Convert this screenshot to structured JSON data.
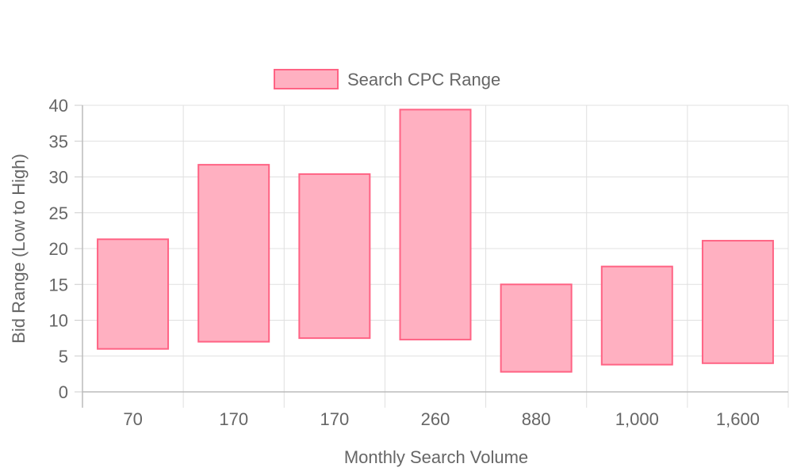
{
  "chart_data": {
    "type": "bar",
    "subtype": "floating-range",
    "categories": [
      "70",
      "170",
      "170",
      "260",
      "880",
      "1,000",
      "1,600"
    ],
    "series": [
      {
        "name": "Search CPC Range",
        "ranges": [
          [
            6,
            21.3
          ],
          [
            7,
            31.7
          ],
          [
            7.5,
            30.4
          ],
          [
            7.3,
            39.4
          ],
          [
            2.8,
            15.0
          ],
          [
            3.8,
            17.5
          ],
          [
            4.0,
            21.1
          ]
        ],
        "fill": "#ffb0c1",
        "stroke": "#ff6384"
      }
    ],
    "xlabel": "Monthly Search Volume",
    "ylabel": "Bid Range (Low to High)",
    "ylim": [
      0,
      40
    ],
    "yticks": [
      0,
      5,
      10,
      15,
      20,
      25,
      30,
      35,
      40
    ],
    "grid": true,
    "legend_position": "top"
  }
}
